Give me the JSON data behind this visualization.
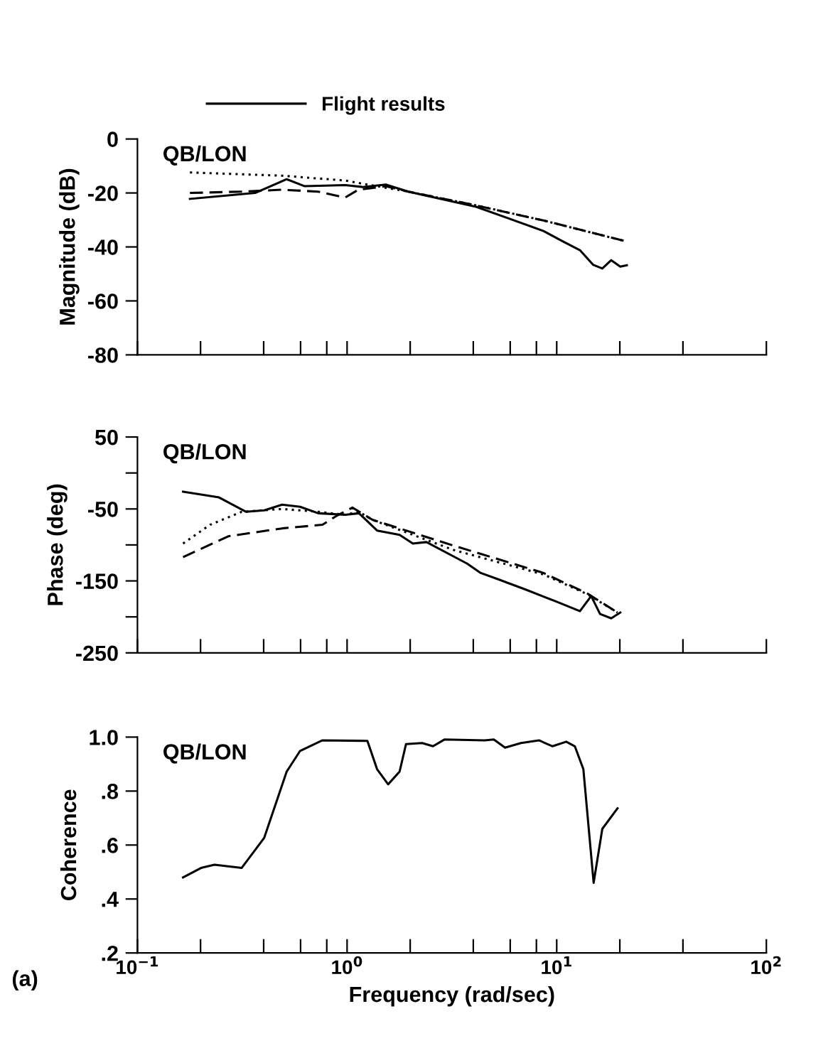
{
  "chart_data": [
    {
      "type": "line",
      "ylabel": "Magnitude (dB)",
      "annotations": [
        "QB/LON"
      ],
      "legend": "top",
      "log": "x",
      "tick_labels": "y",
      "grid": false,
      "marker": "none",
      "xlim": [
        0.1,
        100
      ],
      "xticks": [
        {
          "value": 0.1,
          "label": null
        },
        {
          "value": 0.2,
          "label": null
        },
        {
          "value": 0.4,
          "label": null
        },
        {
          "value": 0.6,
          "label": null
        },
        {
          "value": 0.8,
          "label": null
        },
        {
          "value": 1,
          "label": null
        },
        {
          "value": 2,
          "label": null
        },
        {
          "value": 4,
          "label": null
        },
        {
          "value": 6,
          "label": null
        },
        {
          "value": 8,
          "label": null
        },
        {
          "value": 10,
          "label": null
        },
        {
          "value": 20,
          "label": null
        },
        {
          "value": 40,
          "label": null
        },
        {
          "value": 100,
          "label": null
        }
      ],
      "ylim": [
        -80,
        0
      ],
      "yticks": [
        0,
        -20,
        -40,
        -60,
        -80
      ],
      "series": [
        {
          "name": "Flight results",
          "color": "#000000",
          "line_style": "solid",
          "x": [
            0.178,
            0.364,
            0.515,
            0.628,
            0.98,
            1.19,
            1.53,
            1.96,
            4.12,
            5.83,
            8.65,
            10.6,
            12.9,
            14.9,
            16.5,
            18.2,
            20.1,
            21.6
          ],
          "values": [
            -22.2,
            -20,
            -14.9,
            -17.5,
            -17.1,
            -17.8,
            -16.9,
            -19.5,
            -25.1,
            -29.3,
            -34.1,
            -37.8,
            -41.2,
            -46.6,
            -48,
            -44.9,
            -47.3,
            -46.8
          ]
        },
        {
          "color": "#000000",
          "line_style": "dashed",
          "x": [
            0.178,
            0.314,
            0.49,
            0.726,
            0.98,
            1.13,
            1.53,
            1.96,
            4.12,
            8.65,
            21.1
          ],
          "values": [
            -20,
            -19.5,
            -18.8,
            -19.5,
            -21.7,
            -18.8,
            -17.5,
            -19.5,
            -24.6,
            -30.2,
            -37.8
          ]
        },
        {
          "color": "#000000",
          "line_style": "dotted",
          "x": [
            0.178,
            0.49,
            0.98,
            1.19,
            1.96,
            4.12,
            8.65,
            21.1
          ],
          "values": [
            -12.4,
            -13.6,
            -15.4,
            -16.6,
            -19.5,
            -24.6,
            -30.2,
            -37.8
          ]
        }
      ]
    },
    {
      "type": "line",
      "ylabel": "Phase (deg)",
      "annotations": [
        "QB/LON"
      ],
      "log": "x",
      "tick_labels": "y",
      "grid": false,
      "marker": "none",
      "xlim": [
        0.1,
        100
      ],
      "xticks": [
        {
          "value": 0.1,
          "label": null
        },
        {
          "value": 0.2,
          "label": null
        },
        {
          "value": 0.4,
          "label": null
        },
        {
          "value": 0.6,
          "label": null
        },
        {
          "value": 0.8,
          "label": null
        },
        {
          "value": 1,
          "label": null
        },
        {
          "value": 2,
          "label": null
        },
        {
          "value": 4,
          "label": null
        },
        {
          "value": 6,
          "label": null
        },
        {
          "value": 8,
          "label": null
        },
        {
          "value": 10,
          "label": null
        },
        {
          "value": 20,
          "label": null
        },
        {
          "value": 40,
          "label": null
        },
        {
          "value": 100,
          "label": null
        }
      ],
      "ylim": [
        -250,
        50
      ],
      "yticks": [
        50,
        {
          "value": 0,
          "label": null
        },
        -50,
        {
          "value": -100,
          "label": null
        },
        -150,
        {
          "value": -200,
          "label": null
        },
        -250
      ],
      "series": [
        {
          "color": "#000000",
          "line_style": "solid",
          "x": [
            0.165,
            0.245,
            0.33,
            0.403,
            0.49,
            0.597,
            0.729,
            0.98,
            1.14,
            1.39,
            1.78,
            2.06,
            2.39,
            3.74,
            4.34,
            5.28,
            7.11,
            10.0,
            12.9,
            14.6,
            16.1,
            18.2,
            20.1
          ],
          "values": [
            -26,
            -34,
            -54,
            -52,
            -44,
            -47,
            -56,
            -58,
            -56,
            -80,
            -86,
            -98,
            -96,
            -126,
            -139,
            -148,
            -162,
            -179,
            -192,
            -171,
            -196,
            -202,
            -194
          ]
        },
        {
          "color": "#000000",
          "line_style": "dashed",
          "x": [
            0.165,
            0.271,
            0.49,
            0.763,
            0.886,
            1.06,
            1.32,
            3.22,
            8.65,
            14.1,
            19.5
          ],
          "values": [
            -117,
            -88,
            -77,
            -72,
            -60,
            -48,
            -65,
            -101,
            -139,
            -168,
            -194
          ]
        },
        {
          "color": "#000000",
          "line_style": "dotted",
          "x": [
            0.165,
            0.222,
            0.314,
            0.49,
            0.729,
            0.98,
            1.14,
            1.32,
            3.22,
            8.65,
            14.1,
            19.5
          ],
          "values": [
            -98,
            -72,
            -54,
            -50,
            -54,
            -58,
            -54,
            -65,
            -107,
            -141,
            -169,
            -194
          ]
        }
      ]
    },
    {
      "type": "line",
      "ylabel": "Coherence",
      "xlabel": "Frequency (rad/sec)",
      "annotations": [
        "QB/LON",
        "(a)"
      ],
      "log": "x",
      "grid": false,
      "marker": "none",
      "xlim": [
        0.1,
        100
      ],
      "xticks": [
        {
          "value": 0.1,
          "label": "10$^{−1}$"
        },
        {
          "value": 0.2,
          "label": null
        },
        {
          "value": 0.4,
          "label": null
        },
        {
          "value": 0.6,
          "label": null
        },
        {
          "value": 0.8,
          "label": null
        },
        {
          "value": 1,
          "label": "10$^{0}$"
        },
        {
          "value": 2,
          "label": null
        },
        {
          "value": 4,
          "label": null
        },
        {
          "value": 6,
          "label": null
        },
        {
          "value": 8,
          "label": null
        },
        {
          "value": 10,
          "label": "10$^{1}$"
        },
        {
          "value": 20,
          "label": null
        },
        {
          "value": 40,
          "label": null
        },
        {
          "value": 100,
          "label": "10$^{2}$"
        }
      ],
      "ylim": [
        0.2,
        1.0
      ],
      "yticks": [
        {
          "value": 1.0,
          "label": "1.0"
        },
        {
          "value": 0.8,
          "label": ".8"
        },
        {
          "value": 0.6,
          "label": ".6"
        },
        {
          "value": 0.4,
          "label": ".4"
        },
        {
          "value": 0.2,
          "label": ".2"
        }
      ],
      "series": [
        {
          "color": "#000000",
          "line_style": "solid",
          "x": [
            0.165,
            0.201,
            0.233,
            0.314,
            0.402,
            0.515,
            0.597,
            0.763,
            1.25,
            1.39,
            1.57,
            1.78,
            1.91,
            2.28,
            2.57,
            2.91,
            4.53,
            5.01,
            5.67,
            6.75,
            8.23,
            9.55,
            11.1,
            12.2,
            13.4,
            15.0,
            16.5,
            19.5
          ],
          "values": [
            0.48,
            0.515,
            0.527,
            0.515,
            0.626,
            0.872,
            0.949,
            0.988,
            0.986,
            0.881,
            0.825,
            0.872,
            0.974,
            0.978,
            0.966,
            0.991,
            0.988,
            0.991,
            0.961,
            0.978,
            0.988,
            0.966,
            0.983,
            0.966,
            0.881,
            0.46,
            0.66,
            0.736
          ]
        }
      ]
    }
  ]
}
